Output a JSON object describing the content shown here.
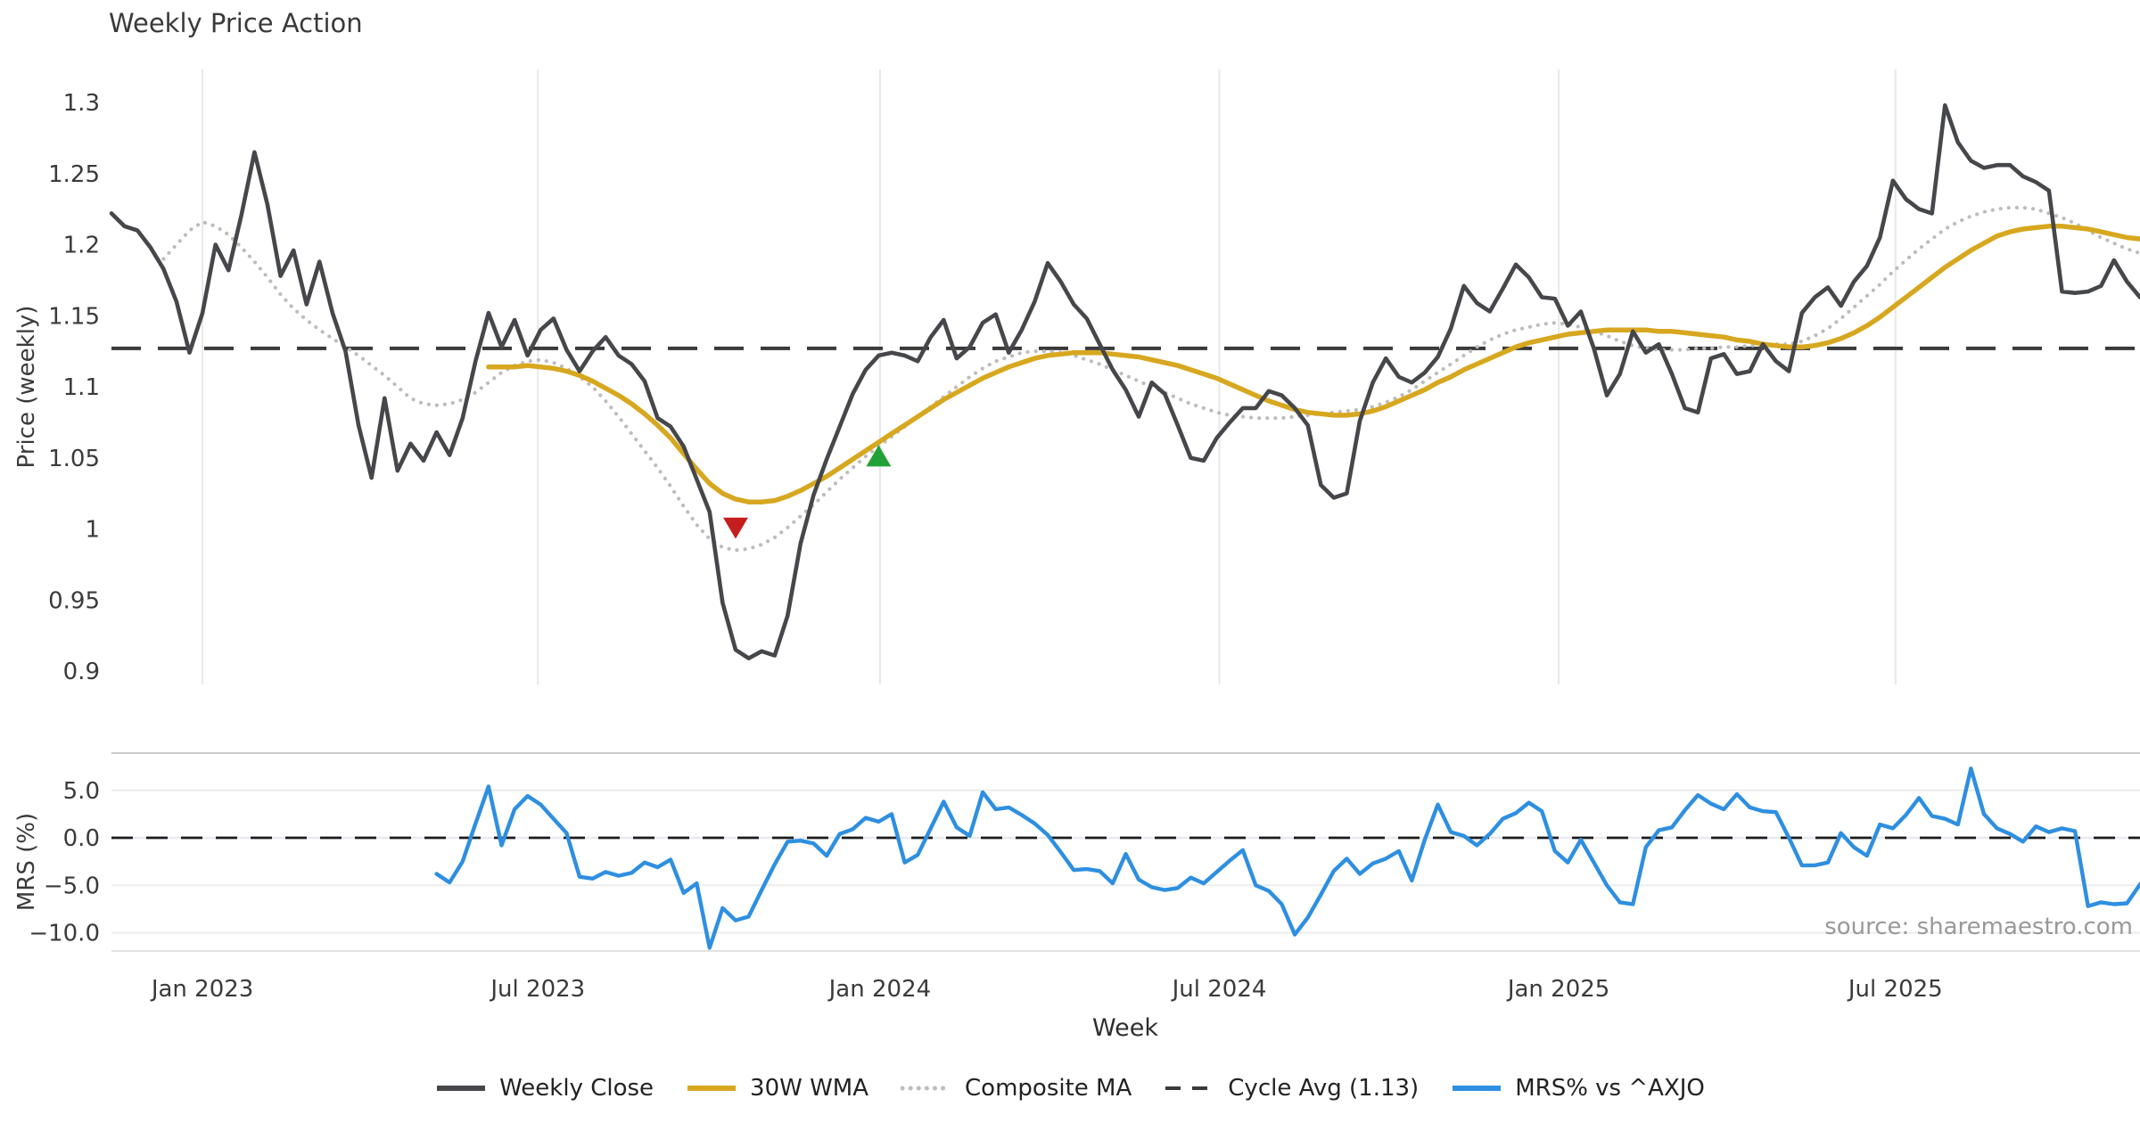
{
  "title": "Weekly Price Action",
  "source_note": "source: sharemaestro.com",
  "xlabel": "Week",
  "price_panel": {
    "ylabel": "Price (weekly)",
    "yticks": [
      {
        "label": "1.3",
        "value": 1.3
      },
      {
        "label": "1.25",
        "value": 1.25
      },
      {
        "label": "1.2",
        "value": 1.2
      },
      {
        "label": "1.15",
        "value": 1.15
      },
      {
        "label": "1.1",
        "value": 1.1
      },
      {
        "label": "1.05",
        "value": 1.05
      },
      {
        "label": "1",
        "value": 1.0
      },
      {
        "label": "0.95",
        "value": 0.95
      },
      {
        "label": "0.9",
        "value": 0.9
      }
    ]
  },
  "mrs_panel": {
    "ylabel": "MRS (%)",
    "yticks": [
      {
        "label": "5.0",
        "value": 5
      },
      {
        "label": "0.0",
        "value": 0
      },
      {
        "label": "−5.0",
        "value": -5
      },
      {
        "label": "−10.0",
        "value": -10
      }
    ]
  },
  "colors": {
    "close": "#45474a",
    "wma": "#d7a71f",
    "composite": "#bdbdbd",
    "cycle_avg": "#3a3a3a",
    "mrs": "#2e8fe0",
    "sell_marker": "#c41e1e",
    "buy_marker": "#21a136",
    "grid": "#e8e8e8",
    "mrs_grid": "#ededed",
    "mrs_zero_under": "#e7eaf3",
    "mrs_top_spine": "#cbcbcb",
    "mrs_bottom_spine": "#e2e2e2",
    "text": "#3a3a3a",
    "source": "#999999"
  },
  "legend": [
    {
      "label": "Weekly Close",
      "swatch": "solid",
      "color": "#45474a"
    },
    {
      "label": "30W WMA",
      "swatch": "solid",
      "color": "#d7a71f"
    },
    {
      "label": "Composite MA",
      "swatch": "dotted",
      "color": "#bdbdbd"
    },
    {
      "label": "Cycle Avg (1.13)",
      "swatch": "dashed",
      "color": "#3a3a3a"
    },
    {
      "label": "MRS% vs ^AXJO",
      "swatch": "solid",
      "color": "#2e8fe0"
    }
  ],
  "chart_data": {
    "type": "line",
    "x_unit": "weeks",
    "weeks_total": 156,
    "x_ticks": [
      {
        "label": "Jan 2023",
        "week": 7.0
      },
      {
        "label": "Jul 2023",
        "week": 32.8
      },
      {
        "label": "Jan 2024",
        "week": 59.1
      },
      {
        "label": "Jul 2024",
        "week": 85.2
      },
      {
        "label": "Jan 2025",
        "week": 111.3
      },
      {
        "label": "Jul 2025",
        "week": 137.2
      }
    ],
    "price": {
      "ylim": [
        0.883,
        1.339
      ],
      "cycle_avg_value": 1.127,
      "series": [
        {
          "name": "Weekly Close",
          "start_week": 0,
          "values": [
            1.222,
            1.213,
            1.21,
            1.198,
            1.183,
            1.16,
            1.124,
            1.152,
            1.2,
            1.182,
            1.221,
            1.265,
            1.228,
            1.178,
            1.196,
            1.158,
            1.188,
            1.152,
            1.125,
            1.073,
            1.036,
            1.092,
            1.041,
            1.06,
            1.048,
            1.068,
            1.052,
            1.078,
            1.118,
            1.152,
            1.128,
            1.147,
            1.122,
            1.14,
            1.148,
            1.126,
            1.111,
            1.125,
            1.135,
            1.122,
            1.116,
            1.104,
            1.078,
            1.072,
            1.058,
            1.035,
            1.012,
            0.948,
            0.915,
            0.909,
            0.914,
            0.911,
            0.939,
            0.99,
            1.024,
            1.049,
            1.072,
            1.095,
            1.112,
            1.122,
            1.124,
            1.122,
            1.118,
            1.135,
            1.147,
            1.12,
            1.128,
            1.145,
            1.151,
            1.124,
            1.14,
            1.16,
            1.187,
            1.174,
            1.158,
            1.148,
            1.13,
            1.112,
            1.098,
            1.079,
            1.103,
            1.095,
            1.073,
            1.05,
            1.048,
            1.064,
            1.075,
            1.085,
            1.085,
            1.097,
            1.094,
            1.085,
            1.073,
            1.031,
            1.022,
            1.025,
            1.076,
            1.103,
            1.12,
            1.107,
            1.103,
            1.11,
            1.121,
            1.141,
            1.171,
            1.159,
            1.153,
            1.169,
            1.186,
            1.177,
            1.163,
            1.162,
            1.143,
            1.153,
            1.127,
            1.094,
            1.109,
            1.139,
            1.124,
            1.13,
            1.109,
            1.085,
            1.082,
            1.12,
            1.123,
            1.109,
            1.111,
            1.13,
            1.118,
            1.111,
            1.152,
            1.163,
            1.17,
            1.157,
            1.174,
            1.185,
            1.205,
            1.245,
            1.232,
            1.225,
            1.222,
            1.298,
            1.272,
            1.259,
            1.254,
            1.256,
            1.256,
            1.248,
            1.244,
            1.238,
            1.167,
            1.166,
            1.167,
            1.171,
            1.189,
            1.174,
            1.163
          ]
        },
        {
          "name": "30W WMA",
          "start_week": 29,
          "values": [
            1.114,
            1.114,
            1.114,
            1.115,
            1.114,
            1.113,
            1.111,
            1.108,
            1.104,
            1.099,
            1.094,
            1.088,
            1.081,
            1.073,
            1.064,
            1.053,
            1.042,
            1.032,
            1.025,
            1.021,
            1.019,
            1.019,
            1.02,
            1.023,
            1.027,
            1.032,
            1.037,
            1.043,
            1.049,
            1.055,
            1.061,
            1.067,
            1.073,
            1.079,
            1.085,
            1.091,
            1.096,
            1.101,
            1.106,
            1.11,
            1.114,
            1.117,
            1.12,
            1.122,
            1.123,
            1.124,
            1.124,
            1.124,
            1.123,
            1.122,
            1.121,
            1.119,
            1.117,
            1.115,
            1.112,
            1.109,
            1.106,
            1.102,
            1.098,
            1.094,
            1.09,
            1.087,
            1.084,
            1.082,
            1.081,
            1.08,
            1.08,
            1.081,
            1.083,
            1.086,
            1.09,
            1.094,
            1.098,
            1.103,
            1.107,
            1.112,
            1.116,
            1.12,
            1.124,
            1.128,
            1.131,
            1.133,
            1.135,
            1.137,
            1.138,
            1.139,
            1.14,
            1.14,
            1.14,
            1.14,
            1.139,
            1.139,
            1.138,
            1.137,
            1.136,
            1.135,
            1.133,
            1.132,
            1.13,
            1.129,
            1.128,
            1.128,
            1.129,
            1.131,
            1.134,
            1.138,
            1.143,
            1.149,
            1.156,
            1.163,
            1.17,
            1.177,
            1.184,
            1.19,
            1.196,
            1.201,
            1.206,
            1.209,
            1.211,
            1.212,
            1.213,
            1.213,
            1.212,
            1.211,
            1.209,
            1.207,
            1.205,
            1.204
          ]
        },
        {
          "name": "Composite MA",
          "start_week": 4,
          "values": [
            1.19,
            1.2,
            1.21,
            1.216,
            1.213,
            1.207,
            1.198,
            1.188,
            1.177,
            1.165,
            1.155,
            1.147,
            1.14,
            1.134,
            1.128,
            1.122,
            1.115,
            1.108,
            1.1,
            1.092,
            1.088,
            1.087,
            1.088,
            1.091,
            1.096,
            1.103,
            1.11,
            1.115,
            1.118,
            1.119,
            1.117,
            1.113,
            1.107,
            1.1,
            1.09,
            1.079,
            1.067,
            1.055,
            1.043,
            1.03,
            1.016,
            1.003,
            0.993,
            0.987,
            0.985,
            0.986,
            0.989,
            0.994,
            1.001,
            1.009,
            1.017,
            1.026,
            1.035,
            1.043,
            1.051,
            1.058,
            1.065,
            1.072,
            1.079,
            1.086,
            1.093,
            1.1,
            1.107,
            1.113,
            1.118,
            1.121,
            1.124,
            1.125,
            1.125,
            1.124,
            1.122,
            1.119,
            1.116,
            1.112,
            1.108,
            1.104,
            1.1,
            1.096,
            1.092,
            1.088,
            1.085,
            1.082,
            1.08,
            1.079,
            1.078,
            1.078,
            1.078,
            1.079,
            1.08,
            1.081,
            1.082,
            1.083,
            1.084,
            1.086,
            1.089,
            1.093,
            1.098,
            1.104,
            1.11,
            1.116,
            1.122,
            1.128,
            1.133,
            1.137,
            1.14,
            1.142,
            1.144,
            1.145,
            1.144,
            1.142,
            1.139,
            1.136,
            1.132,
            1.129,
            1.127,
            1.126,
            1.126,
            1.126,
            1.127,
            1.127,
            1.128,
            1.128,
            1.129,
            1.129,
            1.13,
            1.13,
            1.132,
            1.136,
            1.141,
            1.148,
            1.156,
            1.164,
            1.172,
            1.181,
            1.189,
            1.197,
            1.204,
            1.211,
            1.216,
            1.22,
            1.223,
            1.225,
            1.226,
            1.226,
            1.225,
            1.222,
            1.219,
            1.215,
            1.21,
            1.205,
            1.201,
            1.197,
            1.194
          ]
        }
      ],
      "markers": [
        {
          "type": "sell",
          "week": 48,
          "price": 1.001
        },
        {
          "type": "buy",
          "week": 59,
          "price": 1.051
        }
      ]
    },
    "mrs": {
      "ylim": [
        -12.2,
        9.0
      ],
      "series": [
        {
          "name": "MRS% vs ^AXJO",
          "start_week": 25,
          "values": [
            -3.8,
            -4.7,
            -2.5,
            1.5,
            5.4,
            -0.8,
            3.0,
            4.4,
            3.5,
            2.0,
            0.5,
            -4.1,
            -4.3,
            -3.6,
            -4.0,
            -3.7,
            -2.6,
            -3.1,
            -2.3,
            -5.8,
            -4.8,
            -11.6,
            -7.4,
            -8.7,
            -8.3,
            -5.5,
            -2.8,
            -0.4,
            -0.3,
            -0.6,
            -1.9,
            0.4,
            0.9,
            2.1,
            1.7,
            2.5,
            -2.6,
            -1.8,
            1.0,
            3.8,
            1.1,
            0.2,
            4.8,
            3.0,
            3.2,
            2.4,
            1.5,
            0.3,
            -1.5,
            -3.4,
            -3.3,
            -3.5,
            -4.8,
            -1.7,
            -4.4,
            -5.2,
            -5.5,
            -5.3,
            -4.2,
            -4.8,
            -3.6,
            -2.4,
            -1.3,
            -5.0,
            -5.6,
            -7.0,
            -10.2,
            -8.4,
            -6.0,
            -3.5,
            -2.2,
            -3.8,
            -2.7,
            -2.2,
            -1.4,
            -4.5,
            -0.2,
            3.5,
            0.6,
            0.2,
            -0.8,
            0.4,
            2.0,
            2.6,
            3.7,
            2.8,
            -1.4,
            -2.6,
            -0.2,
            -2.6,
            -5.0,
            -6.8,
            -7.0,
            -1.0,
            0.8,
            1.1,
            2.9,
            4.5,
            3.6,
            3.0,
            4.6,
            3.2,
            2.8,
            2.7,
            0.0,
            -2.9,
            -2.9,
            -2.6,
            0.5,
            -1.0,
            -1.9,
            1.4,
            1.0,
            2.4,
            4.2,
            2.3,
            2.0,
            1.4,
            7.3,
            2.5,
            1.0,
            0.4,
            -0.4,
            1.2,
            0.6,
            1.0,
            0.7,
            -7.2,
            -6.8,
            -7.0,
            -6.9,
            -4.9
          ]
        }
      ]
    }
  }
}
